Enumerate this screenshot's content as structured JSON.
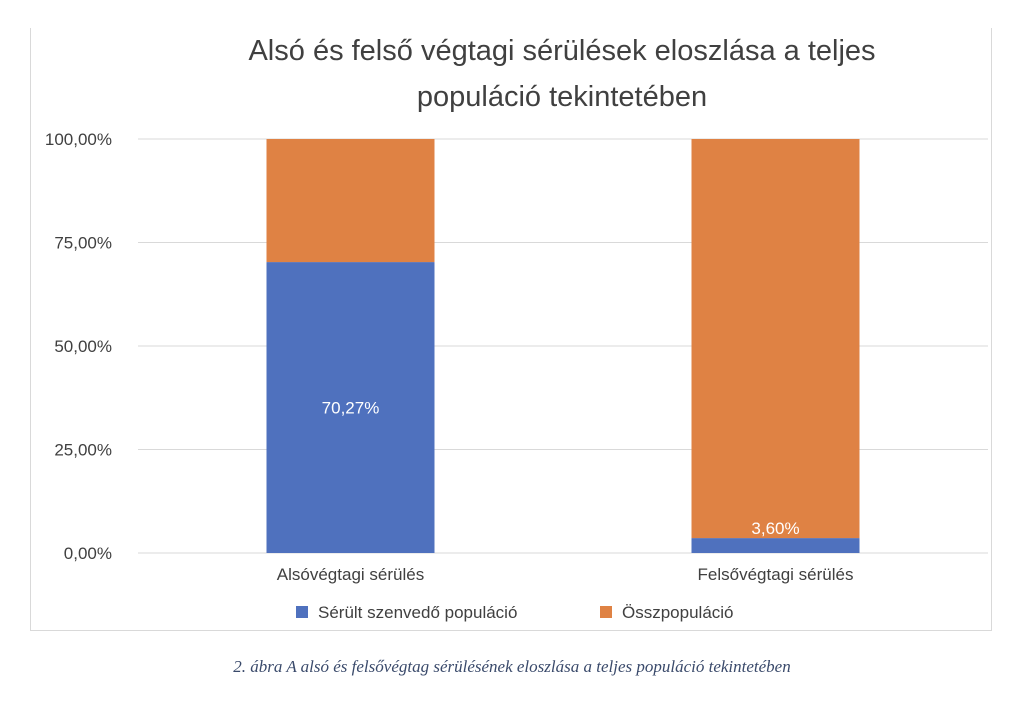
{
  "chart_data": {
    "type": "bar",
    "stacked": true,
    "title_lines": [
      "Alsó és felső végtagi sérülések eloszlása a teljes",
      "populáció tekintetében"
    ],
    "categories": [
      "Alsóvégtagi sérülés",
      "Felsővégtagi sérülés"
    ],
    "series": [
      {
        "name": "Sérült szenvedő populáció",
        "values": [
          70.27,
          3.6
        ],
        "color": "#4f71be",
        "labels": [
          "70,27%",
          "3,60%"
        ]
      },
      {
        "name": "Összpopuláció",
        "values": [
          29.73,
          96.4
        ],
        "color": "#df8244"
      }
    ],
    "ylim": [
      0,
      100
    ],
    "yticks": [
      0,
      25,
      50,
      75,
      100
    ],
    "ytick_labels": [
      "0,00%",
      "25,00%",
      "50,00%",
      "75,00%",
      "100,00%"
    ],
    "grid": true,
    "legend_position": "bottom"
  },
  "caption": "2. ábra A alsó és felsővégtag sérülésének eloszlása a teljes populáció tekintetében"
}
